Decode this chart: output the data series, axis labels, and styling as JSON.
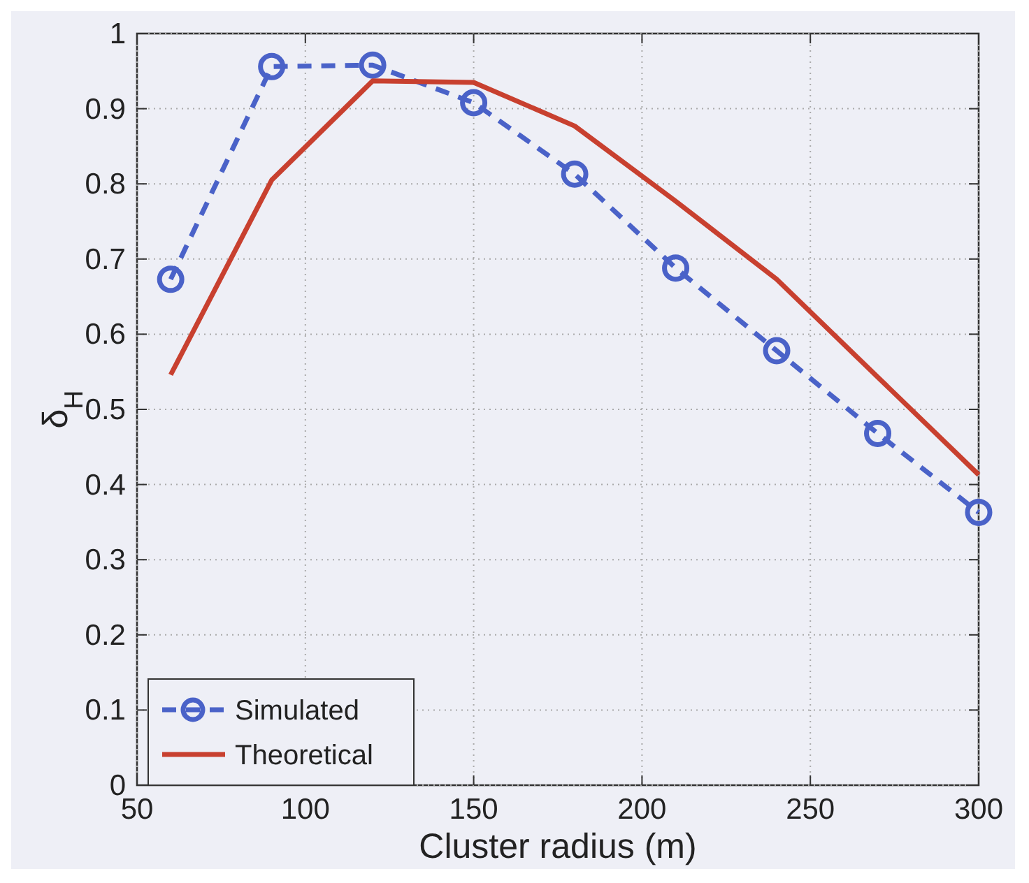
{
  "chart_data": {
    "type": "line",
    "xlabel": "Cluster radius (m)",
    "ylabel": "δ$_{H}$",
    "x": [
      60,
      90,
      120,
      150,
      180,
      210,
      240,
      270,
      300
    ],
    "series": [
      {
        "name": "Simulated",
        "color": "#4a62c8",
        "values": [
          0.673,
          0.956,
          0.958,
          0.908,
          0.813,
          0.688,
          0.578,
          0.468,
          0.363
        ],
        "marker": "circle",
        "line_style": "dashed"
      },
      {
        "name": "Theoretical",
        "color": "#c8402f",
        "values": [
          0.546,
          0.805,
          0.937,
          0.935,
          0.877,
          0.777,
          0.673,
          0.543,
          0.413
        ],
        "marker": "none",
        "line_style": "solid"
      }
    ],
    "xlim": [
      50,
      300
    ],
    "xticks": [
      50,
      100,
      150,
      200,
      250,
      300
    ],
    "ylim": [
      0,
      1
    ],
    "yticks": [
      0,
      0.1,
      0.2,
      0.3,
      0.4,
      0.5,
      0.6,
      0.7,
      0.8,
      0.9,
      1
    ],
    "grid": true,
    "legend": "bottom left"
  }
}
